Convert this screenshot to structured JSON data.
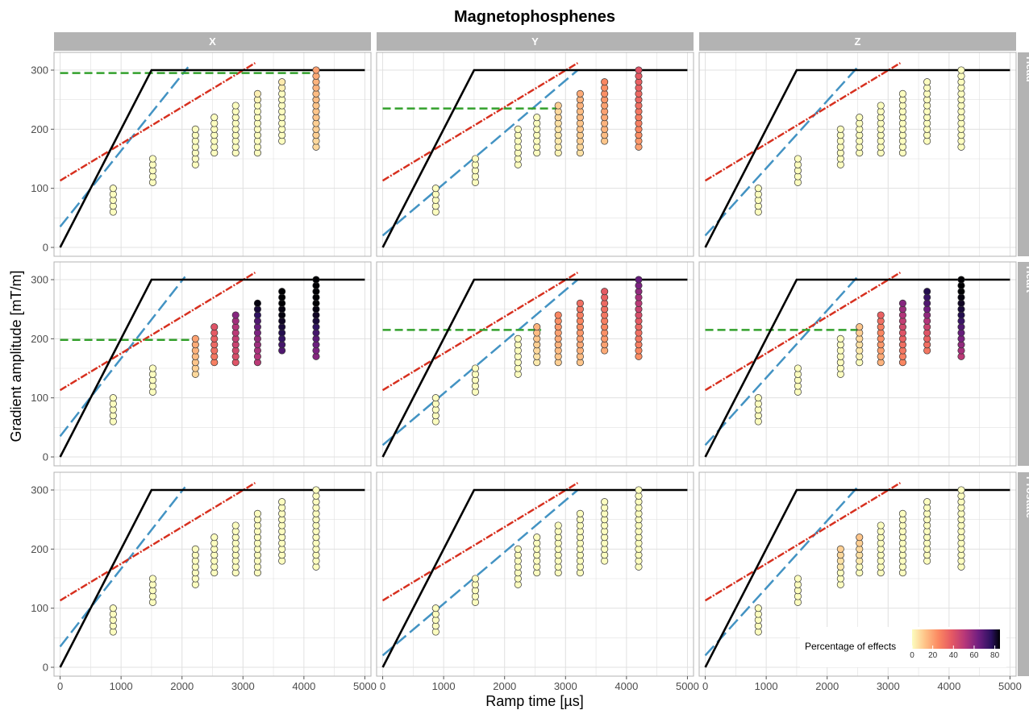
{
  "chart_data": {
    "type": "scatter",
    "title": "Magnetophosphenes",
    "xlabel": "Ramp time [µs]",
    "ylabel": "Gradient amplitude [mT/m]",
    "xlim": [
      -100,
      5100
    ],
    "ylim": [
      -15,
      330
    ],
    "x_ticks": [
      0,
      1000,
      2000,
      3000,
      4000,
      5000
    ],
    "y_ticks": [
      0,
      100,
      200,
      300
    ],
    "grid": true,
    "facet_columns": [
      "X",
      "Y",
      "Z"
    ],
    "facet_rows": [
      "Head",
      "Heart",
      "Prostate"
    ],
    "legend": {
      "title": "Percentage of effects",
      "ticks": [
        "0",
        "20",
        "40",
        "60",
        "80"
      ],
      "range": [
        0,
        85
      ],
      "placement": "bottom-right",
      "colormap": "magma-reversed"
    },
    "colors": {
      "hardware_limit": "#000000",
      "blue_threshold": "#4393c3",
      "red_threshold": "#d7301f",
      "green_threshold": "#33a02c",
      "strip_background": "#b3b3b3",
      "panel_border": "#b3b3b3",
      "grid": "#e0e0e0"
    },
    "series": [
      {
        "style": "solid",
        "color": "black",
        "x": [
          0,
          1500,
          5000
        ],
        "y": [
          0,
          300,
          300
        ]
      }
    ],
    "columns": [
      {
        "x": 870,
        "y_values": [
          60,
          70,
          80,
          90,
          100
        ]
      },
      {
        "x": 1520,
        "y_values": [
          110,
          120,
          130,
          140,
          150
        ]
      },
      {
        "x": 2220,
        "y_values": [
          140,
          150,
          160,
          170,
          180,
          190,
          200
        ]
      },
      {
        "x": 2530,
        "y_values": [
          160,
          170,
          180,
          190,
          200,
          210,
          220
        ]
      },
      {
        "x": 2880,
        "y_values": [
          160,
          170,
          180,
          190,
          200,
          210,
          220,
          230,
          240
        ]
      },
      {
        "x": 3240,
        "y_values": [
          160,
          170,
          180,
          190,
          200,
          210,
          220,
          230,
          240,
          250,
          260
        ]
      },
      {
        "x": 3640,
        "y_values": [
          180,
          190,
          200,
          210,
          220,
          230,
          240,
          250,
          260,
          270,
          280
        ]
      },
      {
        "x": 4200,
        "y_values": [
          170,
          180,
          190,
          200,
          210,
          220,
          230,
          240,
          250,
          260,
          270,
          280,
          290,
          300
        ]
      }
    ],
    "panels": [
      {
        "row": "Head",
        "col": "X",
        "blue": [
          [
            0,
            35
          ],
          [
            2100,
            305
          ]
        ],
        "red": [
          [
            0,
            113
          ],
          [
            3200,
            312
          ]
        ],
        "green": [
          [
            0,
            295
          ],
          [
            4200,
            295
          ]
        ],
        "effects": [
          [
            0,
            0,
            0,
            0,
            0
          ],
          [
            0,
            0,
            0,
            0,
            0
          ],
          [
            0,
            0,
            0,
            0,
            0,
            0,
            0
          ],
          [
            0,
            0,
            0,
            0,
            0,
            0,
            0
          ],
          [
            0,
            0,
            0,
            0,
            0,
            0,
            0,
            0,
            0
          ],
          [
            0,
            0,
            0,
            0,
            0,
            0,
            0,
            0,
            0,
            2,
            3
          ],
          [
            0,
            0,
            0,
            0,
            0,
            0,
            0,
            0,
            0,
            3,
            4
          ],
          [
            8,
            8,
            10,
            10,
            10,
            12,
            12,
            12,
            14,
            14,
            16,
            16,
            18,
            20
          ]
        ]
      },
      {
        "row": "Head",
        "col": "Y",
        "blue": [
          [
            0,
            20
          ],
          [
            3200,
            300
          ]
        ],
        "red": [
          [
            0,
            113
          ],
          [
            3200,
            312
          ]
        ],
        "green": [
          [
            0,
            235
          ],
          [
            2950,
            235
          ]
        ],
        "effects": [
          [
            0,
            0,
            0,
            0,
            0
          ],
          [
            0,
            0,
            0,
            0,
            0
          ],
          [
            0,
            0,
            0,
            0,
            0,
            0,
            0
          ],
          [
            0,
            0,
            0,
            0,
            0,
            0,
            0
          ],
          [
            2,
            3,
            4,
            4,
            5,
            6,
            8,
            8,
            10
          ],
          [
            6,
            8,
            10,
            10,
            12,
            12,
            14,
            14,
            16,
            16,
            18
          ],
          [
            12,
            14,
            16,
            16,
            18,
            20,
            20,
            22,
            24,
            24,
            26
          ],
          [
            20,
            22,
            24,
            26,
            28,
            28,
            30,
            32,
            34,
            34,
            36,
            36,
            38,
            40
          ]
        ]
      },
      {
        "row": "Head",
        "col": "Z",
        "blue": [
          [
            0,
            20
          ],
          [
            2500,
            305
          ]
        ],
        "red": [
          [
            0,
            113
          ],
          [
            3200,
            312
          ]
        ],
        "green": null,
        "effects": [
          [
            0,
            0,
            0,
            0,
            0
          ],
          [
            0,
            0,
            0,
            0,
            0
          ],
          [
            0,
            0,
            0,
            0,
            0,
            0,
            0
          ],
          [
            0,
            0,
            0,
            0,
            0,
            0,
            0
          ],
          [
            0,
            0,
            0,
            0,
            0,
            0,
            0,
            0,
            0
          ],
          [
            0,
            0,
            0,
            0,
            0,
            0,
            0,
            0,
            0,
            0,
            0
          ],
          [
            0,
            0,
            0,
            0,
            0,
            0,
            0,
            0,
            0,
            0,
            0
          ],
          [
            0,
            0,
            0,
            0,
            0,
            0,
            0,
            0,
            0,
            0,
            0,
            0,
            0,
            0
          ]
        ]
      },
      {
        "row": "Heart",
        "col": "X",
        "blue": [
          [
            0,
            35
          ],
          [
            2050,
            305
          ]
        ],
        "red": [
          [
            0,
            113
          ],
          [
            3200,
            312
          ]
        ],
        "green": [
          [
            0,
            198
          ],
          [
            2250,
            198
          ]
        ],
        "effects": [
          [
            0,
            0,
            0,
            0,
            0
          ],
          [
            0,
            0,
            0,
            0,
            0
          ],
          [
            8,
            10,
            12,
            14,
            16,
            18,
            20
          ],
          [
            28,
            30,
            32,
            34,
            36,
            38,
            40
          ],
          [
            40,
            42,
            44,
            46,
            48,
            50,
            52,
            55,
            60
          ],
          [
            50,
            52,
            54,
            56,
            58,
            62,
            66,
            70,
            76,
            80,
            84
          ],
          [
            70,
            72,
            75,
            78,
            80,
            82,
            84,
            84,
            85,
            85,
            85
          ],
          [
            60,
            62,
            65,
            68,
            72,
            76,
            80,
            82,
            84,
            85,
            85,
            85,
            85,
            85
          ]
        ]
      },
      {
        "row": "Heart",
        "col": "Y",
        "blue": [
          [
            0,
            20
          ],
          [
            3200,
            300
          ]
        ],
        "red": [
          [
            0,
            113
          ],
          [
            3200,
            312
          ]
        ],
        "green": [
          [
            0,
            215
          ],
          [
            2600,
            215
          ]
        ],
        "effects": [
          [
            0,
            0,
            0,
            0,
            0
          ],
          [
            0,
            0,
            0,
            0,
            0
          ],
          [
            0,
            0,
            0,
            0,
            0,
            0,
            0
          ],
          [
            4,
            6,
            8,
            10,
            12,
            14,
            16
          ],
          [
            10,
            12,
            14,
            16,
            18,
            20,
            22,
            24,
            26
          ],
          [
            12,
            14,
            16,
            18,
            20,
            22,
            24,
            26,
            28,
            30,
            32
          ],
          [
            18,
            20,
            22,
            24,
            26,
            28,
            30,
            32,
            34,
            36,
            38
          ],
          [
            24,
            26,
            28,
            30,
            32,
            34,
            38,
            42,
            46,
            50,
            54,
            58,
            62,
            66
          ]
        ]
      },
      {
        "row": "Heart",
        "col": "Z",
        "blue": [
          [
            0,
            20
          ],
          [
            2500,
            305
          ]
        ],
        "red": [
          [
            0,
            113
          ],
          [
            3200,
            312
          ]
        ],
        "green": [
          [
            0,
            215
          ],
          [
            2550,
            215
          ]
        ],
        "effects": [
          [
            0,
            0,
            0,
            0,
            0
          ],
          [
            0,
            0,
            0,
            0,
            0
          ],
          [
            0,
            0,
            0,
            0,
            0,
            0,
            0
          ],
          [
            0,
            2,
            4,
            6,
            8,
            10,
            12
          ],
          [
            16,
            18,
            20,
            22,
            24,
            26,
            28,
            32,
            36
          ],
          [
            26,
            28,
            30,
            32,
            36,
            40,
            44,
            48,
            52,
            56,
            60
          ],
          [
            30,
            32,
            36,
            40,
            46,
            52,
            58,
            64,
            70,
            74,
            78
          ],
          [
            50,
            54,
            58,
            62,
            66,
            70,
            74,
            78,
            80,
            82,
            84,
            85,
            85,
            85
          ]
        ]
      },
      {
        "row": "Prostate",
        "col": "X",
        "blue": [
          [
            0,
            35
          ],
          [
            2050,
            305
          ]
        ],
        "red": [
          [
            0,
            113
          ],
          [
            3200,
            312
          ]
        ],
        "green": null,
        "effects": [
          [
            0,
            0,
            0,
            0,
            0
          ],
          [
            0,
            0,
            0,
            0,
            0
          ],
          [
            0,
            0,
            0,
            0,
            0,
            0,
            0
          ],
          [
            0,
            0,
            0,
            0,
            0,
            0,
            0
          ],
          [
            0,
            0,
            0,
            0,
            0,
            0,
            0,
            0,
            0
          ],
          [
            0,
            0,
            0,
            0,
            0,
            0,
            0,
            0,
            0,
            0,
            0
          ],
          [
            0,
            0,
            0,
            0,
            0,
            0,
            0,
            0,
            0,
            0,
            0
          ],
          [
            0,
            0,
            0,
            0,
            0,
            0,
            0,
            0,
            0,
            0,
            0,
            0,
            0,
            0
          ]
        ]
      },
      {
        "row": "Prostate",
        "col": "Y",
        "blue": [
          [
            0,
            20
          ],
          [
            3200,
            300
          ]
        ],
        "red": [
          [
            0,
            113
          ],
          [
            3200,
            312
          ]
        ],
        "green": null,
        "effects": [
          [
            0,
            0,
            0,
            0,
            0
          ],
          [
            0,
            0,
            0,
            0,
            0
          ],
          [
            0,
            0,
            0,
            0,
            0,
            0,
            0
          ],
          [
            0,
            0,
            0,
            0,
            0,
            0,
            0
          ],
          [
            0,
            0,
            0,
            0,
            0,
            0,
            0,
            0,
            0
          ],
          [
            0,
            0,
            0,
            0,
            0,
            0,
            0,
            0,
            0,
            0,
            0
          ],
          [
            0,
            0,
            0,
            0,
            0,
            0,
            0,
            0,
            0,
            0,
            0
          ],
          [
            0,
            0,
            0,
            0,
            0,
            0,
            0,
            0,
            0,
            0,
            0,
            0,
            0,
            0
          ]
        ]
      },
      {
        "row": "Prostate",
        "col": "Z",
        "blue": [
          [
            0,
            20
          ],
          [
            2500,
            305
          ]
        ],
        "red": [
          [
            0,
            113
          ],
          [
            3200,
            312
          ]
        ],
        "green": null,
        "effects": [
          [
            0,
            0,
            0,
            0,
            0
          ],
          [
            0,
            0,
            0,
            0,
            0
          ],
          [
            0,
            0,
            0,
            4,
            6,
            8,
            10
          ],
          [
            0,
            0,
            4,
            6,
            8,
            10,
            12
          ],
          [
            0,
            0,
            0,
            0,
            0,
            0,
            0,
            0,
            0
          ],
          [
            0,
            0,
            0,
            0,
            0,
            0,
            0,
            0,
            0,
            0,
            0
          ],
          [
            0,
            0,
            0,
            0,
            0,
            0,
            0,
            0,
            0,
            0,
            0
          ],
          [
            0,
            0,
            0,
            0,
            0,
            0,
            0,
            0,
            0,
            0,
            0,
            0,
            0,
            0
          ]
        ]
      }
    ]
  }
}
